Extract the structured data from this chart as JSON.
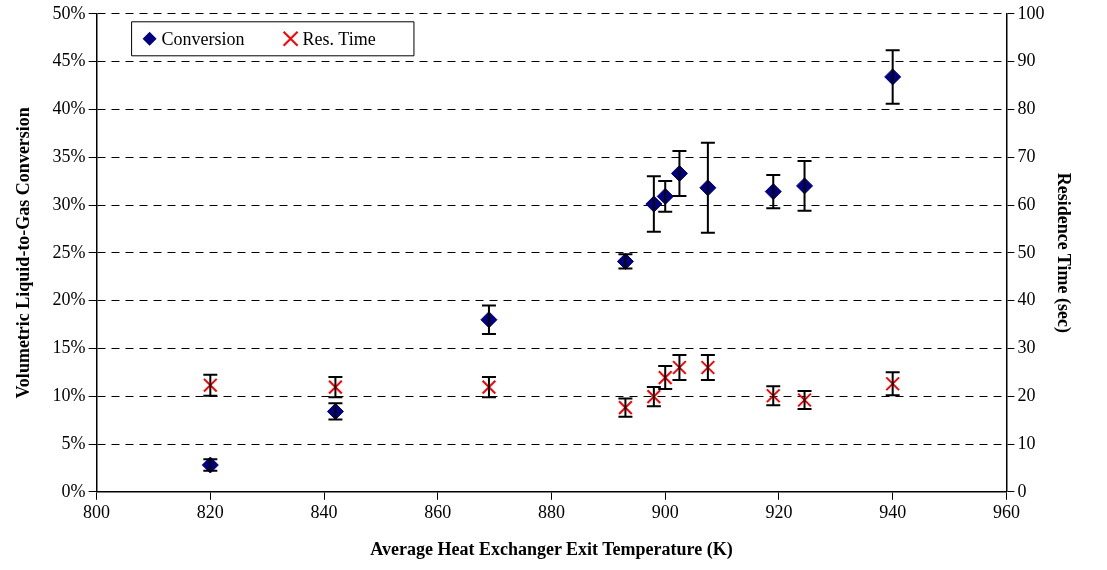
{
  "chart_data": {
    "type": "scatter",
    "xlabel": "Average Heat Exchanger Exit Temperature (K)",
    "ylabel": "Volumetric Liquid-to-Gas Conversion",
    "y2label": "Residence Time (sec)",
    "x": [
      820,
      842,
      869,
      893,
      898,
      900,
      902.5,
      907.5,
      919,
      924.5,
      940
    ],
    "series": [
      {
        "name": "Conversion",
        "color": "#000080",
        "marker": "diamond",
        "values": [
          2.8,
          8.4,
          18.0,
          24.1,
          30.1,
          30.9,
          33.3,
          31.8,
          31.4,
          32.0,
          43.4
        ],
        "errors": [
          0.6,
          0.85,
          1.5,
          0.75,
          2.9,
          1.6,
          2.35,
          4.7,
          1.75,
          2.6,
          2.8
        ]
      },
      {
        "name": "Res. Time",
        "color": "#ff0000",
        "marker": "cross",
        "axis": "y2",
        "values": [
          22.3,
          21.9,
          21.9,
          17.6,
          19.9,
          23.9,
          26.0,
          26.0,
          20.1,
          19.2,
          22.6
        ],
        "errors": [
          2.2,
          2.1,
          2.1,
          1.9,
          2.0,
          2.4,
          2.6,
          2.6,
          2.0,
          1.9,
          2.4
        ]
      }
    ],
    "xlim": [
      800,
      960
    ],
    "xticks": [
      800,
      820,
      840,
      860,
      880,
      900,
      920,
      940,
      960
    ],
    "ylim": [
      0,
      50
    ],
    "yticks": [
      {
        "value": 0,
        "label": "0%"
      },
      {
        "value": 5,
        "label": "5%"
      },
      {
        "value": 10,
        "label": "10%"
      },
      {
        "value": 15,
        "label": "15%"
      },
      {
        "value": 20,
        "label": "20%"
      },
      {
        "value": 25,
        "label": "25%"
      },
      {
        "value": 30,
        "label": "30%"
      },
      {
        "value": 35,
        "label": "35%"
      },
      {
        "value": 40,
        "label": "40%"
      },
      {
        "value": 45,
        "label": "45%"
      },
      {
        "value": 50,
        "label": "50%"
      }
    ],
    "y2lim": [
      0,
      100
    ],
    "y2ticks": [
      0,
      10,
      20,
      30,
      40,
      50,
      60,
      70,
      80,
      90,
      100
    ],
    "grid": "y",
    "legend": "top left"
  }
}
